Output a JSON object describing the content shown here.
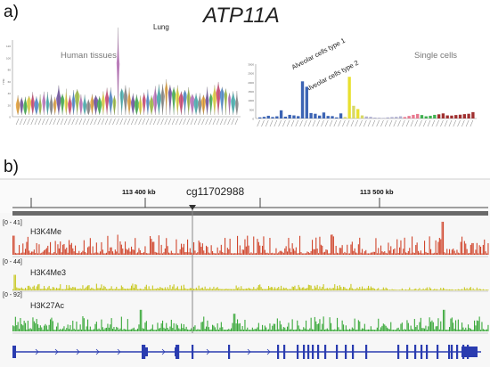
{
  "panel_a": {
    "label": "a)",
    "gene_title": "ATP11A",
    "human_tissues": {
      "title": "Human tissues",
      "peak_label": "Lung",
      "y_axis_label": "TPM",
      "y_ticks": [
        "0",
        "20",
        "40",
        "60",
        "80",
        "100",
        "120"
      ],
      "colors": [
        "#e8a030",
        "#6a4aa0",
        "#3cb04a",
        "#e8d83c",
        "#d04070",
        "#4a88d0",
        "#a0c040",
        "#c070c0",
        "#40b0b0",
        "#888888"
      ]
    },
    "single_cells": {
      "title": "Single cells",
      "annotation_1": "Alveolar cells type 1",
      "annotation_2": "Alveolar cells type 2",
      "y_ticks": [
        "0",
        "500",
        "1000",
        "1500",
        "2000",
        "2500",
        "3000"
      ],
      "colors": [
        "#3c64b4",
        "#e8e030",
        "#e87a90",
        "#40b050",
        "#a03030",
        "#5090d0"
      ]
    }
  },
  "chart_data": [
    {
      "type": "bar",
      "title": "Human tissues",
      "xlabel": "",
      "ylabel": "TPM",
      "ylim": [
        0,
        130
      ],
      "series": [
        {
          "values": [
            20,
            22,
            18,
            25,
            24,
            21,
            19,
            26,
            23,
            20,
            22,
            30,
            28,
            24,
            21,
            26,
            35,
            22,
            20,
            18,
            24,
            26,
            22,
            27,
            31,
            29,
            25,
            90,
            38,
            34,
            26,
            24,
            22,
            20,
            28,
            26,
            23,
            30,
            32,
            35,
            46,
            40,
            38,
            34,
            30,
            36,
            32,
            28,
            24,
            22,
            26,
            28,
            30,
            34,
            40,
            38,
            36,
            30,
            26,
            22
          ]
        }
      ]
    },
    {
      "type": "bar",
      "title": "Single cells",
      "xlabel": "",
      "ylabel": "",
      "ylim": [
        0,
        3000
      ],
      "series": [
        {
          "values": [
            60,
            90,
            150,
            80,
            120,
            450,
            100,
            200,
            170,
            130,
            2050,
            1750,
            300,
            260,
            160,
            330,
            140,
            130,
            60,
            280,
            80,
            2300,
            700,
            520,
            170,
            110,
            90,
            50,
            40,
            30,
            60,
            80,
            90,
            120,
            80,
            140,
            200,
            250,
            190,
            120,
            150,
            200,
            230,
            280,
            170,
            160,
            190,
            210,
            240,
            260,
            350
          ]
        }
      ]
    }
  ],
  "panel_b": {
    "label": "b)",
    "ruler": {
      "coord_1": "113 400 kb",
      "coord_2": "113 500 kb"
    },
    "probe": "cg11702988",
    "tracks": [
      {
        "range": "[0 - 41]",
        "name": "H3K4Me",
        "color": "#d0452c"
      },
      {
        "range": "[0 - 44]",
        "name": "H3K4Me3",
        "color": "#c8c820"
      },
      {
        "range": "[0 - 92]",
        "name": "H3K27Ac",
        "color": "#3aa83a"
      }
    ],
    "gene_color": "#2a3cb0"
  }
}
